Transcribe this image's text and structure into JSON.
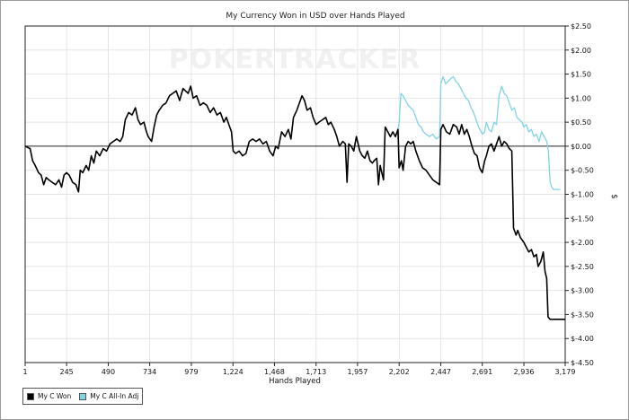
{
  "chart_data": {
    "type": "line",
    "title": "My Currency Won in USD over Hands Played",
    "xlabel": "Hands Played",
    "ylabel": "$",
    "watermark": "POKERTRACKER",
    "x_ticks": [
      "1",
      "245",
      "490",
      "734",
      "979",
      "1,224",
      "1,468",
      "1,713",
      "1,957",
      "2,202",
      "2,447",
      "2,691",
      "2,936",
      "3,179"
    ],
    "y_ticks": [
      "$2.50",
      "$2.00",
      "$1.50",
      "$1.00",
      "$0.50",
      "$0.00",
      "$-0.50",
      "$-1.00",
      "$-1.50",
      "$-2.00",
      "$-2.50",
      "$-3.00",
      "$-3.50",
      "$-4.00",
      "$-4.50"
    ],
    "xlim": [
      1,
      3179
    ],
    "ylim": [
      -4.5,
      2.5
    ],
    "grid": true,
    "legend_position": "bottom-left",
    "series": [
      {
        "name": "My C Won",
        "color": "#000000",
        "points": [
          [
            1,
            0.0
          ],
          [
            30,
            -0.05
          ],
          [
            45,
            -0.3
          ],
          [
            60,
            -0.4
          ],
          [
            80,
            -0.55
          ],
          [
            95,
            -0.6
          ],
          [
            110,
            -0.8
          ],
          [
            125,
            -0.65
          ],
          [
            140,
            -0.7
          ],
          [
            160,
            -0.75
          ],
          [
            180,
            -0.8
          ],
          [
            200,
            -0.7
          ],
          [
            215,
            -0.85
          ],
          [
            230,
            -0.6
          ],
          [
            245,
            -0.55
          ],
          [
            260,
            -0.6
          ],
          [
            280,
            -0.75
          ],
          [
            300,
            -0.8
          ],
          [
            315,
            -0.95
          ],
          [
            325,
            -0.5
          ],
          [
            340,
            -0.55
          ],
          [
            360,
            -0.4
          ],
          [
            375,
            -0.5
          ],
          [
            390,
            -0.2
          ],
          [
            405,
            -0.35
          ],
          [
            420,
            -0.1
          ],
          [
            440,
            -0.2
          ],
          [
            460,
            -0.05
          ],
          [
            480,
            -0.1
          ],
          [
            500,
            0.05
          ],
          [
            520,
            0.1
          ],
          [
            540,
            0.15
          ],
          [
            560,
            0.1
          ],
          [
            575,
            0.2
          ],
          [
            590,
            0.55
          ],
          [
            610,
            0.7
          ],
          [
            630,
            0.65
          ],
          [
            650,
            0.8
          ],
          [
            665,
            0.55
          ],
          [
            680,
            0.45
          ],
          [
            700,
            0.5
          ],
          [
            715,
            0.3
          ],
          [
            725,
            0.2
          ],
          [
            735,
            0.15
          ],
          [
            745,
            0.1
          ],
          [
            760,
            0.4
          ],
          [
            775,
            0.65
          ],
          [
            790,
            0.75
          ],
          [
            810,
            0.85
          ],
          [
            830,
            0.9
          ],
          [
            850,
            1.05
          ],
          [
            870,
            1.1
          ],
          [
            890,
            1.15
          ],
          [
            910,
            0.95
          ],
          [
            930,
            1.2
          ],
          [
            945,
            1.15
          ],
          [
            960,
            1.1
          ],
          [
            975,
            1.25
          ],
          [
            990,
            1.0
          ],
          [
            1010,
            1.05
          ],
          [
            1030,
            0.85
          ],
          [
            1050,
            0.9
          ],
          [
            1070,
            0.85
          ],
          [
            1090,
            0.7
          ],
          [
            1110,
            0.8
          ],
          [
            1130,
            0.65
          ],
          [
            1150,
            0.7
          ],
          [
            1170,
            0.5
          ],
          [
            1185,
            0.6
          ],
          [
            1200,
            0.45
          ],
          [
            1215,
            0.3
          ],
          [
            1225,
            -0.1
          ],
          [
            1240,
            -0.15
          ],
          [
            1260,
            -0.1
          ],
          [
            1280,
            -0.2
          ],
          [
            1300,
            -0.15
          ],
          [
            1320,
            0.1
          ],
          [
            1340,
            0.15
          ],
          [
            1360,
            0.1
          ],
          [
            1380,
            0.15
          ],
          [
            1400,
            0.05
          ],
          [
            1420,
            0.1
          ],
          [
            1440,
            -0.1
          ],
          [
            1460,
            -0.2
          ],
          [
            1475,
            0.0
          ],
          [
            1490,
            -0.05
          ],
          [
            1510,
            0.3
          ],
          [
            1530,
            0.2
          ],
          [
            1550,
            0.35
          ],
          [
            1565,
            0.15
          ],
          [
            1580,
            0.6
          ],
          [
            1600,
            0.75
          ],
          [
            1615,
            0.9
          ],
          [
            1630,
            1.05
          ],
          [
            1645,
            0.95
          ],
          [
            1660,
            0.75
          ],
          [
            1680,
            0.8
          ],
          [
            1695,
            0.6
          ],
          [
            1713,
            0.45
          ],
          [
            1730,
            0.5
          ],
          [
            1750,
            0.55
          ],
          [
            1770,
            0.6
          ],
          [
            1785,
            0.45
          ],
          [
            1800,
            0.5
          ],
          [
            1820,
            0.35
          ],
          [
            1835,
            0.2
          ],
          [
            1850,
            0.0
          ],
          [
            1870,
            0.1
          ],
          [
            1885,
            0.05
          ],
          [
            1895,
            -0.75
          ],
          [
            1905,
            0.05
          ],
          [
            1920,
            0.0
          ],
          [
            1935,
            -0.1
          ],
          [
            1950,
            0.2
          ],
          [
            1957,
            0.1
          ],
          [
            1970,
            -0.1
          ],
          [
            1985,
            -0.2
          ],
          [
            2000,
            -0.25
          ],
          [
            2015,
            -0.1
          ],
          [
            2030,
            -0.3
          ],
          [
            2045,
            -0.35
          ],
          [
            2055,
            -0.3
          ],
          [
            2070,
            -0.25
          ],
          [
            2080,
            -0.8
          ],
          [
            2090,
            -0.4
          ],
          [
            2100,
            -0.55
          ],
          [
            2110,
            -0.7
          ],
          [
            2120,
            0.4
          ],
          [
            2135,
            0.3
          ],
          [
            2150,
            0.2
          ],
          [
            2165,
            0.3
          ],
          [
            2180,
            0.2
          ],
          [
            2195,
            0.35
          ],
          [
            2202,
            -0.45
          ],
          [
            2215,
            -0.3
          ],
          [
            2225,
            -0.5
          ],
          [
            2240,
            0.0
          ],
          [
            2255,
            0.1
          ],
          [
            2270,
            0.05
          ],
          [
            2285,
            0.1
          ],
          [
            2300,
            -0.1
          ],
          [
            2320,
            -0.3
          ],
          [
            2340,
            -0.45
          ],
          [
            2360,
            -0.5
          ],
          [
            2380,
            -0.6
          ],
          [
            2400,
            -0.7
          ],
          [
            2420,
            -0.75
          ],
          [
            2440,
            -0.8
          ],
          [
            2447,
            0.35
          ],
          [
            2460,
            0.45
          ],
          [
            2480,
            0.3
          ],
          [
            2500,
            0.25
          ],
          [
            2520,
            0.45
          ],
          [
            2540,
            0.4
          ],
          [
            2555,
            0.25
          ],
          [
            2570,
            0.45
          ],
          [
            2585,
            0.25
          ],
          [
            2600,
            0.35
          ],
          [
            2615,
            0.2
          ],
          [
            2630,
            0.0
          ],
          [
            2645,
            -0.15
          ],
          [
            2660,
            -0.2
          ],
          [
            2675,
            -0.45
          ],
          [
            2691,
            -0.55
          ],
          [
            2705,
            -0.3
          ],
          [
            2715,
            -0.2
          ],
          [
            2730,
            0.0
          ],
          [
            2745,
            0.05
          ],
          [
            2760,
            -0.1
          ],
          [
            2775,
            0.05
          ],
          [
            2790,
            0.2
          ],
          [
            2805,
            0.0
          ],
          [
            2820,
            0.1
          ],
          [
            2835,
            0.05
          ],
          [
            2850,
            -0.05
          ],
          [
            2865,
            -0.1
          ],
          [
            2875,
            -1.7
          ],
          [
            2890,
            -1.85
          ],
          [
            2900,
            -1.75
          ],
          [
            2915,
            -1.9
          ],
          [
            2936,
            -2.0
          ],
          [
            2950,
            -2.1
          ],
          [
            2965,
            -2.2
          ],
          [
            2980,
            -2.15
          ],
          [
            2995,
            -2.3
          ],
          [
            3010,
            -2.25
          ],
          [
            3020,
            -2.5
          ],
          [
            3035,
            -2.4
          ],
          [
            3050,
            -2.2
          ],
          [
            3060,
            -2.6
          ],
          [
            3070,
            -2.75
          ],
          [
            3078,
            -3.55
          ],
          [
            3090,
            -3.6
          ],
          [
            3110,
            -3.6
          ],
          [
            3130,
            -3.6
          ],
          [
            3150,
            -3.6
          ],
          [
            3179,
            -3.6
          ]
        ]
      },
      {
        "name": "My C All-In Adj",
        "color": "#7fd4e6",
        "points": [
          [
            2120,
            0.4
          ],
          [
            2135,
            0.3
          ],
          [
            2150,
            0.2
          ],
          [
            2165,
            0.3
          ],
          [
            2180,
            0.2
          ],
          [
            2195,
            0.35
          ],
          [
            2202,
            0.5
          ],
          [
            2212,
            1.1
          ],
          [
            2225,
            1.05
          ],
          [
            2240,
            0.95
          ],
          [
            2255,
            0.85
          ],
          [
            2270,
            0.8
          ],
          [
            2285,
            0.75
          ],
          [
            2300,
            0.6
          ],
          [
            2315,
            0.45
          ],
          [
            2330,
            0.4
          ],
          [
            2345,
            0.3
          ],
          [
            2360,
            0.25
          ],
          [
            2380,
            0.2
          ],
          [
            2400,
            0.25
          ],
          [
            2420,
            0.15
          ],
          [
            2440,
            0.2
          ],
          [
            2447,
            1.3
          ],
          [
            2460,
            1.45
          ],
          [
            2475,
            1.3
          ],
          [
            2490,
            1.35
          ],
          [
            2505,
            1.4
          ],
          [
            2520,
            1.45
          ],
          [
            2535,
            1.35
          ],
          [
            2550,
            1.3
          ],
          [
            2565,
            1.2
          ],
          [
            2580,
            1.1
          ],
          [
            2595,
            1.0
          ],
          [
            2610,
            0.95
          ],
          [
            2625,
            0.8
          ],
          [
            2640,
            0.7
          ],
          [
            2655,
            0.55
          ],
          [
            2670,
            0.4
          ],
          [
            2685,
            0.3
          ],
          [
            2691,
            0.25
          ],
          [
            2705,
            0.3
          ],
          [
            2715,
            0.5
          ],
          [
            2730,
            0.35
          ],
          [
            2745,
            0.3
          ],
          [
            2760,
            0.5
          ],
          [
            2775,
            0.45
          ],
          [
            2790,
            1.05
          ],
          [
            2805,
            1.25
          ],
          [
            2820,
            1.1
          ],
          [
            2835,
            1.05
          ],
          [
            2850,
            0.9
          ],
          [
            2865,
            0.75
          ],
          [
            2880,
            0.8
          ],
          [
            2895,
            0.6
          ],
          [
            2910,
            0.55
          ],
          [
            2925,
            0.5
          ],
          [
            2936,
            0.4
          ],
          [
            2950,
            0.45
          ],
          [
            2965,
            0.3
          ],
          [
            2980,
            0.35
          ],
          [
            2995,
            0.2
          ],
          [
            3010,
            0.25
          ],
          [
            3025,
            0.1
          ],
          [
            3040,
            0.3
          ],
          [
            3055,
            0.2
          ],
          [
            3070,
            0.1
          ],
          [
            3080,
            -0.1
          ],
          [
            3090,
            -0.75
          ],
          [
            3100,
            -0.85
          ],
          [
            3110,
            -0.9
          ],
          [
            3130,
            -0.9
          ],
          [
            3150,
            -0.9
          ]
        ]
      }
    ]
  }
}
